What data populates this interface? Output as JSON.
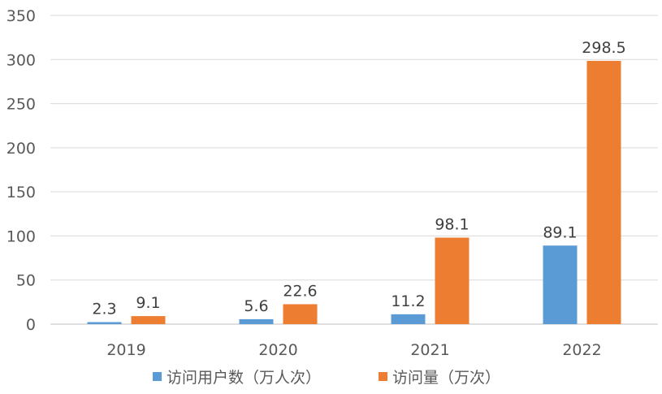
{
  "chart_data": {
    "type": "bar",
    "categories": [
      "2019",
      "2020",
      "2021",
      "2022"
    ],
    "series": [
      {
        "name": "访问用户数（万人次）",
        "values": [
          2.3,
          5.6,
          11.2,
          89.1
        ],
        "color": "#5B9BD5"
      },
      {
        "name": "访问量（万次）",
        "values": [
          9.1,
          22.6,
          98.1,
          298.5
        ],
        "color": "#ED7D31"
      }
    ],
    "ylim": [
      0,
      350
    ],
    "yticks": [
      0,
      50,
      100,
      150,
      200,
      250,
      300,
      350
    ],
    "grid": true,
    "legend_position": "bottom",
    "title": "",
    "xlabel": "",
    "ylabel": ""
  }
}
